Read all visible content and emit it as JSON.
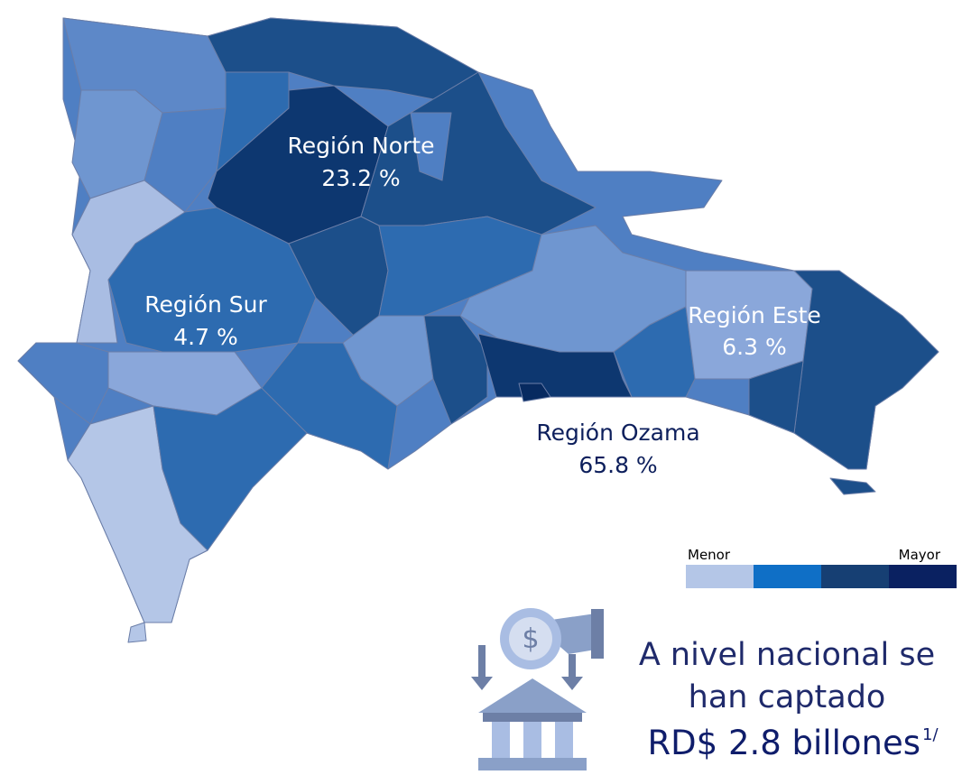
{
  "map": {
    "regions": [
      {
        "name": "Región Norte",
        "share": "23.2 %"
      },
      {
        "name": "Región Sur",
        "share": "4.7 %"
      },
      {
        "name": "Región Este",
        "share": "6.3 %"
      },
      {
        "name": "Región Ozama",
        "share": "65.8 %"
      }
    ]
  },
  "legend": {
    "low": "Menor",
    "high": "Mayor"
  },
  "callout": {
    "lines": [
      "A nivel nacional se",
      "han captado"
    ],
    "amount": "RD$ 2.8 billones",
    "note": "1/"
  }
}
